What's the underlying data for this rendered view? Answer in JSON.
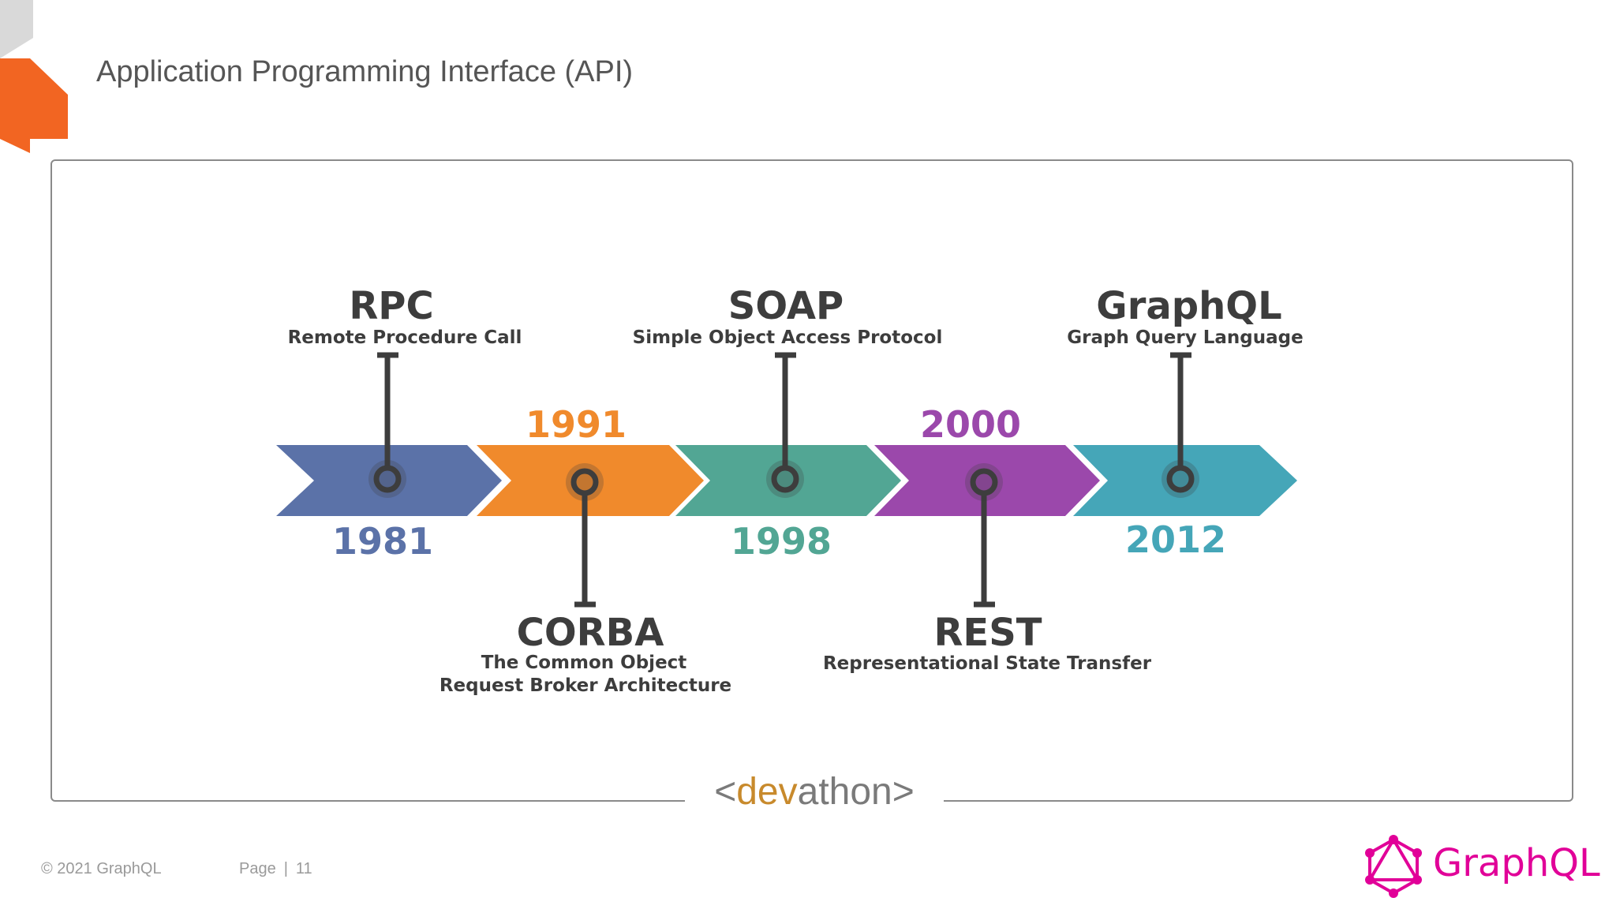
{
  "slide": {
    "title": "Application Programming Interface (API)",
    "footer_copyright": "© 2021 GraphQL",
    "footer_page_label": "Page",
    "footer_separator": "|",
    "footer_page_number": "11",
    "logo_text": "GraphQL"
  },
  "brand": {
    "open": "<",
    "dev": "dev",
    "athon": "athon",
    "close": ">"
  },
  "timeline": {
    "above": [
      {
        "name": "RPC",
        "desc": "Remote Procedure Call",
        "year": "1981"
      },
      {
        "name": "SOAP",
        "desc": "Simple Object Access Protocol",
        "year": "1998"
      },
      {
        "name": "GraphQL",
        "desc": "Graph Query Language",
        "year": "2012"
      }
    ],
    "below": [
      {
        "name": "CORBA",
        "desc_line1": "The Common Object",
        "desc_line2": "Request Broker Architecture",
        "year": "1991"
      },
      {
        "name": "REST",
        "desc_line1": "Representational State Transfer",
        "year": "2000"
      }
    ],
    "segments": [
      {
        "year": "1981",
        "color": "#5b72a8"
      },
      {
        "year": "1991",
        "color": "#f08a2c"
      },
      {
        "year": "1998",
        "color": "#52a694"
      },
      {
        "year": "2000",
        "color": "#9b48ab"
      },
      {
        "year": "2012",
        "color": "#45a6b8"
      }
    ]
  },
  "colors": {
    "accent_orange": "#f26522",
    "graphql_pink": "#e10098",
    "text_dark": "#3d3d3d"
  }
}
